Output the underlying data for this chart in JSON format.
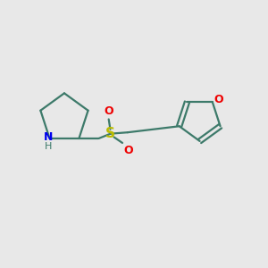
{
  "background_color": "#e8e8e8",
  "bond_color": "#3d7a6a",
  "N_color": "#0000ee",
  "O_color": "#ee0000",
  "S_color": "#bbbb00",
  "line_width": 1.6,
  "fig_size": [
    3.0,
    3.0
  ],
  "dpi": 100,
  "xlim": [
    0,
    10
  ],
  "ylim": [
    0,
    10
  ]
}
